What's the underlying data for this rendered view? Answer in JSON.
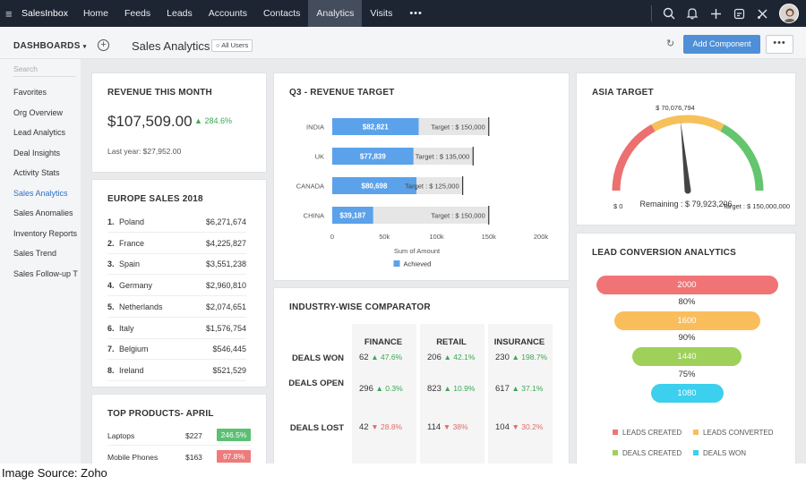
{
  "topnav": {
    "brand": "SalesInbox",
    "tabs": [
      "Home",
      "Feeds",
      "Leads",
      "Accounts",
      "Contacts",
      "Analytics",
      "Visits"
    ],
    "active_tab": "Analytics",
    "more": "•••"
  },
  "subheader": {
    "dashboards_label": "DASHBOARDS",
    "title": "Sales Analytics",
    "visibility": "All Users",
    "add_component": "Add Component",
    "more": "•••"
  },
  "sidebar": {
    "search_placeholder": "Search",
    "items": [
      "Favorites",
      "Org Overview",
      "Lead Analytics",
      "Deal Insights",
      "Activity Stats",
      "Sales Analytics",
      "Sales Anomalies",
      "Inventory Reports",
      "Sales Trend",
      "Sales Follow-up T"
    ],
    "active_item": "Sales Analytics"
  },
  "revenue": {
    "title": "REVENUE THIS MONTH",
    "value": "$107,509.00",
    "change": "284.6%",
    "last_year": "Last year: $27,952.00"
  },
  "europe": {
    "title": "EUROPE SALES 2018",
    "rows": [
      {
        "rank": "1.",
        "country": "Poland",
        "value": "$6,271,674"
      },
      {
        "rank": "2.",
        "country": "France",
        "value": "$4,225,827"
      },
      {
        "rank": "3.",
        "country": "Spain",
        "value": "$3,551,238"
      },
      {
        "rank": "4.",
        "country": "Germany",
        "value": "$2,960,810"
      },
      {
        "rank": "5.",
        "country": "Netherlands",
        "value": "$2,074,651"
      },
      {
        "rank": "6.",
        "country": "Italy",
        "value": "$1,576,754"
      },
      {
        "rank": "7.",
        "country": "Belgium",
        "value": "$546,445"
      },
      {
        "rank": "8.",
        "country": "Ireland",
        "value": "$521,529"
      }
    ]
  },
  "products": {
    "title": "TOP PRODUCTS- APRIL",
    "rows": [
      {
        "name": "Laptops",
        "price": "$227",
        "change": "246.5%",
        "dir": "up"
      },
      {
        "name": "Mobile Phones",
        "price": "$163",
        "change": "97.8%",
        "dir": "down"
      }
    ]
  },
  "chart_data": {
    "type": "bar",
    "title": "Q3 - REVENUE TARGET",
    "orientation": "horizontal",
    "categories": [
      "INDIA",
      "UK",
      "CANADA",
      "CHINA"
    ],
    "series": [
      {
        "name": "Achieved",
        "values": [
          82821,
          77839,
          80698,
          39187
        ]
      }
    ],
    "value_labels": [
      "$82,821",
      "$77,839",
      "$80,698",
      "$39,187"
    ],
    "targets": [
      150000,
      135000,
      125000,
      150000
    ],
    "target_labels": [
      "Target : $ 150,000",
      "Target : $ 135,000",
      "Target : $ 125,000",
      "Target : $ 150,000"
    ],
    "xticks": [
      "0",
      "50k",
      "100k",
      "150k",
      "200k"
    ],
    "xlim": [
      0,
      200000
    ],
    "xlabel": "Sum of Amount",
    "legend_position": "bottom",
    "color": "#5ba2ea"
  },
  "industry": {
    "title": "INDUSTRY-WISE COMPARATOR",
    "columns": [
      "FINANCE",
      "RETAIL",
      "INSURANCE"
    ],
    "rows": [
      {
        "label": "DEALS WON",
        "cells": [
          {
            "v": "62",
            "c": "47.6%",
            "d": "up"
          },
          {
            "v": "206",
            "c": "42.1%",
            "d": "up"
          },
          {
            "v": "230",
            "c": "198.7%",
            "d": "up"
          }
        ]
      },
      {
        "label": "DEALS OPEN",
        "cells": [
          {
            "v": "296",
            "c": "0.3%",
            "d": "up"
          },
          {
            "v": "823",
            "c": "10.9%",
            "d": "up"
          },
          {
            "v": "617",
            "c": "37.1%",
            "d": "up"
          }
        ]
      },
      {
        "label": "DEALS LOST",
        "cells": [
          {
            "v": "42",
            "c": "28.8%",
            "d": "down"
          },
          {
            "v": "114",
            "c": "38%",
            "d": "down"
          },
          {
            "v": "104",
            "c": "30.2%",
            "d": "down"
          }
        ]
      }
    ]
  },
  "asia": {
    "title": "ASIA TARGET",
    "needle_label": "$ 70,076,794",
    "min_label": "$ 0",
    "max_label": "Target : $ 150,000,000",
    "remaining": "Remaining : $ 79,923,206",
    "value": 70076794,
    "max": 150000000
  },
  "funnel": {
    "title": "LEAD CONVERSION ANALYTICS",
    "stages": [
      {
        "value": "2000",
        "color": "#f07476"
      },
      {
        "value": "1600",
        "color": "#f9be5b"
      },
      {
        "value": "1440",
        "color": "#9ed05a"
      },
      {
        "value": "1080",
        "color": "#3ccfee"
      }
    ],
    "rates": [
      "80%",
      "90%",
      "75%"
    ],
    "legend": [
      {
        "label": "LEADS CREATED",
        "color": "#f07476"
      },
      {
        "label": "LEADS CONVERTED",
        "color": "#f9be5b"
      },
      {
        "label": "DEALS CREATED",
        "color": "#9ed05a"
      },
      {
        "label": "DEALS WON",
        "color": "#3ccfee"
      }
    ]
  },
  "source": "Image Source: Zoho",
  "colors": {
    "accent": "#2d70c5",
    "up": "#3aa856",
    "down": "#e06b6b",
    "button": "#4e8fd8"
  }
}
